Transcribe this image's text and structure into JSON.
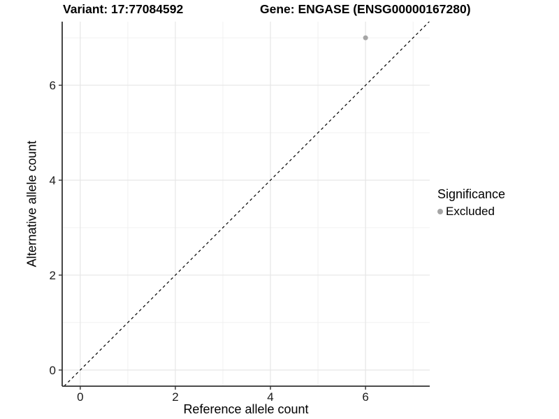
{
  "header": {
    "variant_title": "Variant: 17:77084592",
    "gene_title": "Gene: ENGASE (ENSG00000167280)"
  },
  "chart_data": {
    "type": "scatter",
    "xlabel": "Reference allele count",
    "ylabel": "Alternative allele count",
    "xlim": [
      -0.38,
      7.35
    ],
    "ylim": [
      -0.34,
      7.34
    ],
    "x_major_ticks": [
      0,
      2,
      4,
      6
    ],
    "y_major_ticks": [
      0,
      2,
      4,
      6
    ],
    "x_minor_gridlines": [
      1,
      3,
      5,
      7
    ],
    "y_minor_gridlines": [
      1,
      3,
      5,
      7
    ],
    "grid": true,
    "points": [
      {
        "x": 6,
        "y": 7,
        "series": "Excluded"
      }
    ],
    "reference_line": {
      "equation": "y = x",
      "style": "dashed",
      "color": "#000000"
    },
    "legend": {
      "title": "Significance",
      "position": "right",
      "items": [
        {
          "label": "Excluded",
          "color": "#a5a5a5",
          "marker": "circle"
        }
      ]
    },
    "colors": {
      "point": "#a5a5a5",
      "grid_major": "#e6e6e6",
      "grid_minor": "#f0f0f0",
      "axis_line": "#333333",
      "tick_label": "#1a1a1a"
    }
  }
}
